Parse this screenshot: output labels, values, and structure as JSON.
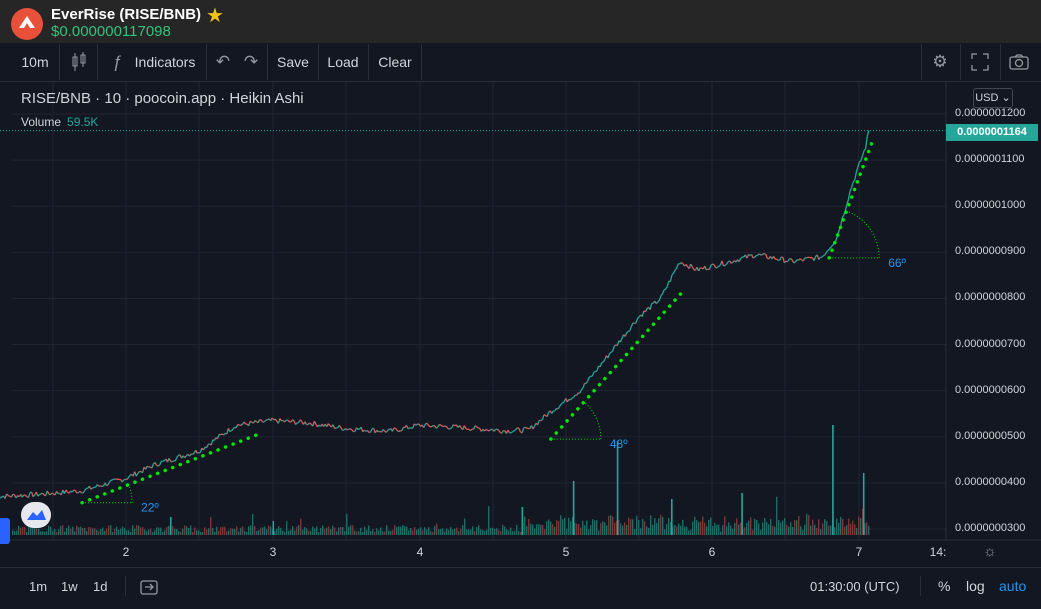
{
  "header": {
    "title": "EverRise (RISE/BNB)",
    "price": "$0.000000117098",
    "favorite_icon": "star-icon"
  },
  "toolbar": {
    "interval": "10m",
    "indicators_label": "Indicators",
    "save_label": "Save",
    "load_label": "Load",
    "clear_label": "Clear",
    "icons": [
      "candles-icon",
      "fx-icon",
      "undo-icon",
      "redo-icon",
      "gear-icon",
      "fullscreen-icon",
      "camera-icon"
    ]
  },
  "legend": {
    "symbol_line": "RISE/BNB · 10 · poocoin.app · Heikin Ashi",
    "volume_label": "Volume",
    "volume_value": "59.5K"
  },
  "currency_button": "USD",
  "bottom": {
    "ranges": [
      "1m",
      "1w",
      "1d"
    ],
    "time": "01:30:00 (UTC)",
    "percent": "%",
    "log": "log",
    "auto": "auto"
  },
  "colors": {
    "up": "#26a69a",
    "down": "#ef5350",
    "trendline": "#00e600",
    "angle_text": "#2196f3",
    "background": "#131722"
  },
  "chart_data": {
    "type": "line",
    "style": "Heikin Ashi",
    "x_ticks": [
      "2",
      "3",
      "4",
      "5",
      "6",
      "7",
      "14:"
    ],
    "y_ticks": [
      "0.0000001200",
      "0.0000001100",
      "0.0000001000",
      "0.0000000900",
      "0.0000000800",
      "0.0000000700",
      "0.0000000600",
      "0.0000000500",
      "0.0000000400",
      "0.0000000300"
    ],
    "ylim": [
      2.88e-08,
      1.212e-07
    ],
    "last_price_label": "0.0000001164",
    "last_price": 1.164e-07,
    "price_series": [
      [
        1.1,
        3.7e-08
      ],
      [
        1.4,
        3.75e-08
      ],
      [
        1.7,
        3.83e-08
      ],
      [
        2.0,
        4.1e-08
      ],
      [
        2.2,
        4.4e-08
      ],
      [
        2.5,
        4.7e-08
      ],
      [
        2.75,
        5.25e-08
      ],
      [
        3.0,
        5.35e-08
      ],
      [
        3.25,
        5.3e-08
      ],
      [
        3.5,
        5.18e-08
      ],
      [
        3.8,
        5.12e-08
      ],
      [
        4.0,
        5.25e-08
      ],
      [
        4.3,
        5.2e-08
      ],
      [
        4.6,
        5.13e-08
      ],
      [
        4.75,
        5.15e-08
      ],
      [
        4.9,
        5.55e-08
      ],
      [
        5.1,
        6e-08
      ],
      [
        5.3,
        6.8e-08
      ],
      [
        5.5,
        7.6e-08
      ],
      [
        5.65,
        8e-08
      ],
      [
        5.78,
        8.8e-08
      ],
      [
        5.9,
        8.62e-08
      ],
      [
        6.1,
        8.78e-08
      ],
      [
        6.3,
        8.95e-08
      ],
      [
        6.55,
        8.8e-08
      ],
      [
        6.75,
        8.9e-08
      ],
      [
        6.85,
        9.3e-08
      ],
      [
        6.95,
        1.04e-07
      ],
      [
        7.05,
        1.13e-07
      ],
      [
        7.07,
        1.164e-07
      ]
    ],
    "volume_spikes": [
      [
        2.3,
        0.09
      ],
      [
        3.0,
        0.07
      ],
      [
        4.7,
        0.14
      ],
      [
        5.05,
        0.27
      ],
      [
        5.35,
        0.47
      ],
      [
        5.72,
        0.18
      ],
      [
        6.2,
        0.21
      ],
      [
        6.82,
        0.55
      ],
      [
        7.03,
        0.31
      ]
    ],
    "annotations": [
      {
        "type": "trendline",
        "from": [
          1.7,
          3.57e-08
        ],
        "to": [
          2.9,
          5.05e-08
        ],
        "angle_label": "22º"
      },
      {
        "type": "trendline",
        "from": [
          4.9,
          4.95e-08
        ],
        "to": [
          5.8,
          8.15e-08
        ],
        "angle_label": "48º"
      },
      {
        "type": "trendline",
        "from": [
          6.8,
          8.88e-08
        ],
        "to": [
          7.1,
          1.145e-07
        ],
        "angle_label": "66º"
      }
    ]
  }
}
